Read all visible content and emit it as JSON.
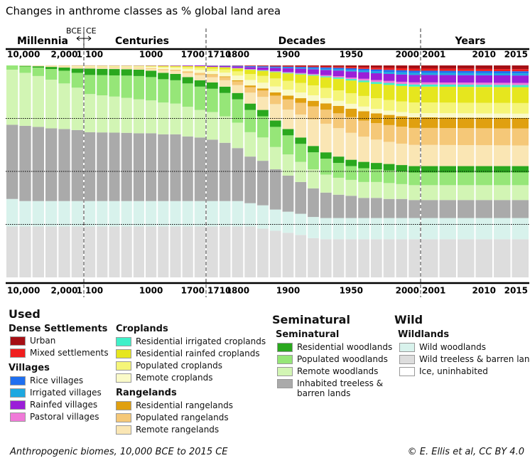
{
  "chart_data": {
    "type": "stacked_bar",
    "title": "Changes in anthrome classes as % global land area",
    "section_labels": [
      "Millennia",
      "Centuries",
      "Decades",
      "Years"
    ],
    "era_labels": [
      "BCE",
      "CE"
    ],
    "categories": [
      "10,000",
      null,
      null,
      null,
      "2,000",
      "1",
      "100",
      null,
      null,
      null,
      null,
      "1000",
      null,
      null,
      null,
      "1700",
      "1710",
      null,
      "1800",
      null,
      null,
      null,
      "1900",
      null,
      null,
      null,
      null,
      "1950",
      null,
      null,
      null,
      null,
      "2000",
      "2001",
      null,
      null,
      "2010",
      null,
      "2015"
    ],
    "ylim": [
      0,
      100
    ],
    "yticks": [
      25,
      50,
      75
    ],
    "grid": true,
    "series": [
      {
        "name": "Urban",
        "color": "#a50f15",
        "values": [
          0,
          0,
          0,
          0,
          0,
          0,
          0,
          0,
          0,
          0,
          0,
          0,
          0,
          0,
          0,
          0,
          0.05,
          0.05,
          0.1,
          0.15,
          0.2,
          0.25,
          0.3,
          0.35,
          0.4,
          0.5,
          0.6,
          0.75,
          0.9,
          1.1,
          1.2,
          1.35,
          1.5,
          1.5,
          1.55,
          1.6,
          1.65,
          1.7,
          1.75
        ]
      },
      {
        "name": "Mixed settlements",
        "color": "#f01e1e",
        "values": [
          0,
          0,
          0,
          0,
          0,
          0,
          0,
          0,
          0,
          0,
          0,
          0,
          0,
          0,
          0,
          0,
          0.05,
          0.05,
          0.1,
          0.15,
          0.2,
          0.25,
          0.3,
          0.35,
          0.4,
          0.45,
          0.5,
          0.6,
          0.7,
          0.8,
          0.9,
          0.95,
          1,
          1,
          1,
          1,
          1,
          1,
          1
        ]
      },
      {
        "name": "Rice villages",
        "color": "#1e6ff0",
        "values": [
          0,
          0,
          0,
          0,
          0,
          0,
          0,
          0,
          0,
          0,
          0,
          0,
          0,
          0,
          0,
          0,
          0.1,
          0.15,
          0.2,
          0.3,
          0.35,
          0.4,
          0.45,
          0.5,
          0.6,
          0.65,
          0.7,
          0.75,
          0.8,
          0.9,
          0.95,
          1,
          1,
          1,
          1,
          1,
          1,
          1,
          1
        ]
      },
      {
        "name": "Irrigated villages",
        "color": "#1ea8e0",
        "values": [
          0,
          0,
          0,
          0,
          0,
          0,
          0,
          0,
          0,
          0,
          0,
          0,
          0,
          0,
          0,
          0,
          0.05,
          0.05,
          0.1,
          0.15,
          0.2,
          0.25,
          0.3,
          0.35,
          0.4,
          0.5,
          0.6,
          0.7,
          0.8,
          0.9,
          0.95,
          1,
          1,
          1,
          1,
          1,
          1,
          1,
          1
        ]
      },
      {
        "name": "Rainfed villages",
        "color": "#9b1ed8",
        "values": [
          0,
          0.01,
          0.02,
          0.04,
          0.05,
          0.08,
          0.08,
          0.08,
          0.09,
          0.09,
          0.1,
          0.13,
          0.18,
          0.2,
          0.28,
          0.35,
          0.4,
          0.5,
          0.7,
          1,
          1.2,
          1.5,
          1.8,
          2,
          2.2,
          2.5,
          2.7,
          2.9,
          3.1,
          3.2,
          3.3,
          3.4,
          3.5,
          3.5,
          3.5,
          3.5,
          3.5,
          3.5,
          3.5
        ]
      },
      {
        "name": "Pastoral villages",
        "color": "#f07ad8",
        "values": [
          0,
          0,
          0,
          0,
          0,
          0,
          0,
          0,
          0,
          0,
          0,
          0,
          0,
          0,
          0,
          0,
          0.05,
          0.05,
          0.1,
          0.15,
          0.2,
          0.25,
          0.3,
          0.35,
          0.4,
          0.5,
          0.6,
          0.7,
          0.8,
          0.9,
          0.95,
          1,
          1,
          1,
          1,
          1,
          1,
          1,
          1
        ]
      },
      {
        "name": "Residential irrigated croplands",
        "color": "#40f0c8",
        "values": [
          0,
          0,
          0,
          0,
          0,
          0,
          0,
          0,
          0,
          0,
          0,
          0,
          0,
          0,
          0,
          0,
          0,
          0.05,
          0.1,
          0.15,
          0.2,
          0.25,
          0.3,
          0.35,
          0.4,
          0.5,
          0.6,
          0.7,
          0.8,
          0.9,
          0.95,
          1,
          1,
          1,
          1,
          1,
          1,
          1,
          1
        ]
      },
      {
        "name": "Residential rainfed croplands",
        "color": "#e6e61e",
        "values": [
          0,
          0.02,
          0.04,
          0.07,
          0.1,
          0.15,
          0.15,
          0.16,
          0.17,
          0.18,
          0.2,
          0.25,
          0.35,
          0.4,
          0.55,
          0.7,
          0.8,
          1,
          1.4,
          2,
          2.4,
          3,
          3.5,
          4,
          4.6,
          5,
          5.5,
          6,
          6.5,
          6.8,
          7.1,
          7.3,
          7.5,
          7.5,
          7.5,
          7.5,
          7.5,
          7.5,
          7.5
        ]
      },
      {
        "name": "Populated croplands",
        "color": "#f5f578",
        "values": [
          0,
          0.03,
          0.06,
          0.11,
          0.15,
          0.23,
          0.23,
          0.24,
          0.26,
          0.27,
          0.3,
          0.38,
          0.53,
          0.6,
          0.83,
          1.05,
          1.2,
          1.5,
          2,
          2.8,
          3.2,
          3.8,
          4.2,
          4.5,
          4.7,
          4.8,
          4.9,
          5,
          5,
          5,
          5,
          5,
          5,
          5,
          5,
          5,
          5,
          5,
          5
        ]
      },
      {
        "name": "Remote croplands",
        "color": "#fafac8",
        "values": [
          0,
          0.04,
          0.08,
          0.14,
          0.2,
          0.3,
          0.3,
          0.32,
          0.34,
          0.36,
          0.4,
          0.5,
          0.7,
          0.8,
          1.1,
          1.4,
          1.5,
          1.8,
          2.2,
          2.6,
          2.7,
          2.8,
          2.8,
          2.7,
          2.6,
          2.5,
          2.4,
          2.3,
          2.2,
          2.1,
          2.05,
          2,
          2,
          2,
          2,
          2,
          2,
          2,
          2
        ]
      },
      {
        "name": "Residential rangelands",
        "color": "#e0a010",
        "values": [
          0,
          0,
          0,
          0,
          0,
          0,
          0,
          0,
          0,
          0,
          0,
          0,
          0,
          0,
          0,
          0,
          0.2,
          0.3,
          0.5,
          0.8,
          1,
          1.5,
          1.8,
          2.2,
          2.6,
          3,
          3.5,
          4,
          4.4,
          4.6,
          4.8,
          4.9,
          5,
          5,
          5,
          5,
          5,
          5,
          5
        ]
      },
      {
        "name": "Populated rangelands",
        "color": "#f5c878",
        "values": [
          0,
          0.03,
          0.06,
          0.11,
          0.15,
          0.23,
          0.23,
          0.24,
          0.26,
          0.27,
          0.3,
          0.38,
          0.53,
          0.6,
          0.83,
          1.05,
          1.2,
          1.5,
          1.8,
          2.6,
          3,
          4,
          4.8,
          5.5,
          6.2,
          6.6,
          7,
          7.4,
          7.6,
          7.8,
          7.9,
          8,
          8,
          8,
          8,
          8,
          8,
          8,
          8
        ]
      },
      {
        "name": "Remote rangelands",
        "color": "#fae6b4",
        "values": [
          0,
          0.07,
          0.14,
          0.25,
          0.35,
          0.53,
          0.53,
          0.56,
          0.6,
          0.63,
          0.7,
          0.88,
          1.23,
          1.4,
          1.93,
          2.45,
          2.4,
          3,
          3.7,
          5.15,
          6.15,
          7.75,
          9.15,
          10.85,
          12.5,
          13.5,
          13.4,
          12.7,
          11.9,
          11,
          10.45,
          10.1,
          10,
          10,
          9.95,
          9.9,
          9.85,
          9.8,
          9.75
        ]
      },
      {
        "name": "Residential woodlands",
        "color": "#2aa81e",
        "values": [
          0,
          0.3,
          0.6,
          1,
          1.5,
          2,
          3,
          3,
          3,
          3,
          3,
          3,
          3,
          3,
          3,
          3,
          3,
          3,
          3,
          3,
          3,
          3,
          3,
          3,
          3,
          3,
          3,
          3,
          3,
          3,
          3,
          3,
          3,
          3,
          3,
          3,
          3,
          3,
          3
        ]
      },
      {
        "name": "Populated woodlands",
        "color": "#96e678",
        "values": [
          2,
          3,
          4,
          5,
          6,
          7,
          9,
          9.5,
          10,
          10.5,
          11,
          11,
          11,
          11,
          11,
          11,
          11,
          11,
          11,
          10.5,
          10,
          9.5,
          9,
          8.5,
          8,
          7.5,
          7,
          6.5,
          6.5,
          6,
          6,
          6,
          6,
          6,
          6,
          6,
          6,
          6,
          6
        ]
      },
      {
        "name": "Remote woodlands",
        "color": "#d2f5b4",
        "values": [
          26,
          25,
          24,
          23,
          21.5,
          20,
          18,
          17.5,
          17,
          16.5,
          16,
          15.5,
          15,
          14.5,
          14,
          13,
          13,
          12.5,
          12,
          11.5,
          11,
          10.5,
          10,
          9.5,
          9,
          8.5,
          8,
          7.5,
          7.5,
          7.5,
          7.5,
          7,
          7,
          7,
          7,
          7,
          7,
          7,
          7
        ]
      },
      {
        "name": "Inhabited treeless & barren lands",
        "color": "#aaaaaa",
        "values": [
          35,
          35.5,
          35,
          34.3,
          34,
          33.5,
          32.5,
          32.4,
          32.3,
          32.2,
          32,
          32,
          31.5,
          31.5,
          30.5,
          30,
          29,
          27.5,
          25,
          22,
          21,
          19,
          17,
          15,
          13.5,
          12,
          11,
          10.5,
          9.5,
          9.5,
          9,
          9,
          8.5,
          8.5,
          8.5,
          8.5,
          8.5,
          8.5,
          8.5
        ]
      },
      {
        "name": "Wild woodlands",
        "color": "#d8f2ec",
        "values": [
          13,
          12,
          12,
          12,
          12,
          12,
          12,
          12,
          12,
          12,
          12,
          12,
          12,
          12,
          12,
          12,
          12,
          12,
          12,
          11,
          11,
          10,
          10,
          10,
          10,
          10,
          10,
          10,
          10,
          10,
          10,
          10,
          10,
          10,
          10,
          10,
          10,
          10,
          10
        ]
      },
      {
        "name": "Wild treeless & barren lands",
        "color": "#dddddd",
        "values": [
          24,
          24,
          24,
          24,
          24,
          24,
          24,
          24,
          24,
          24,
          24,
          24,
          24,
          24,
          24,
          24,
          24,
          24,
          24,
          24,
          23,
          22,
          21,
          20,
          18.5,
          18,
          18,
          18,
          18,
          18,
          18,
          18,
          18,
          18,
          18,
          18,
          18,
          18,
          18
        ]
      },
      {
        "name": "Ice, uninhabited",
        "color": "#ffffff",
        "values": [
          0,
          0,
          0,
          0,
          0,
          0,
          0,
          0,
          0,
          0,
          0,
          0,
          0,
          0,
          0,
          0,
          0,
          0,
          0,
          0,
          0,
          0,
          0,
          0,
          0,
          0,
          0,
          0,
          0,
          0,
          0,
          0,
          0,
          0,
          0,
          0,
          0,
          0,
          0
        ]
      }
    ]
  },
  "legend_headings": [
    "Used",
    "Dense Settlements",
    "Villages",
    "Croplands",
    "Rangelands",
    "Seminatural",
    "Seminatural",
    "Wild",
    "Wildlands"
  ],
  "caption": "Anthropogenic biomes, 10,000 BCE to 2015 CE",
  "credit": "© E. Ellis et al, CC BY 4.0"
}
